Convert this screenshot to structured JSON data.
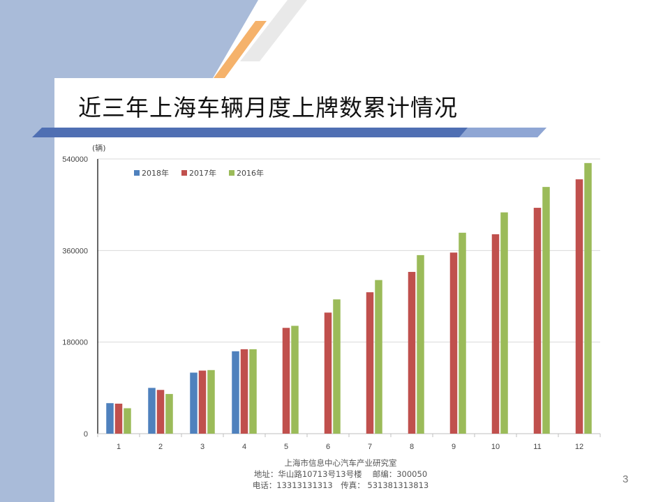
{
  "slide": {
    "title": "近三年上海车辆月度上牌数累计情况",
    "page_number": "3",
    "footer": {
      "line1": "上海市信息中心汽车产业研究室",
      "line2": "地址：华山路10713号13号楼　 邮编：300050",
      "line3": "电话：13313131313　传真： 531381313813"
    }
  },
  "colors": {
    "series_2018": "#4f81bd",
    "series_2017": "#c0504d",
    "series_2016": "#9bbb59",
    "deco_blue": "#a9bbd9",
    "deco_orange": "#f5b26b",
    "header_bar": "#4f6fb3"
  },
  "chart_data": {
    "type": "bar",
    "ylabel": "(辆)",
    "ylim": [
      0,
      540000
    ],
    "yticks": [
      0,
      180000,
      360000,
      540000
    ],
    "ytick_labels": [
      "0",
      "180000",
      "360000",
      "540000"
    ],
    "grid": true,
    "legend_position": "top-left",
    "categories": [
      "1",
      "2",
      "3",
      "4",
      "5",
      "6",
      "7",
      "8",
      "9",
      "10",
      "11",
      "12"
    ],
    "series": [
      {
        "name": "2018年",
        "values": [
          60000,
          90000,
          120000,
          162000,
          null,
          null,
          null,
          null,
          null,
          null,
          null,
          null
        ]
      },
      {
        "name": "2017年",
        "values": [
          59000,
          86000,
          124000,
          166000,
          208000,
          238000,
          278000,
          318000,
          356000,
          392000,
          444000,
          500000
        ]
      },
      {
        "name": "2016年",
        "values": [
          50000,
          78000,
          125000,
          166000,
          212000,
          264000,
          302000,
          351000,
          395000,
          435000,
          485000,
          532000
        ]
      }
    ]
  }
}
